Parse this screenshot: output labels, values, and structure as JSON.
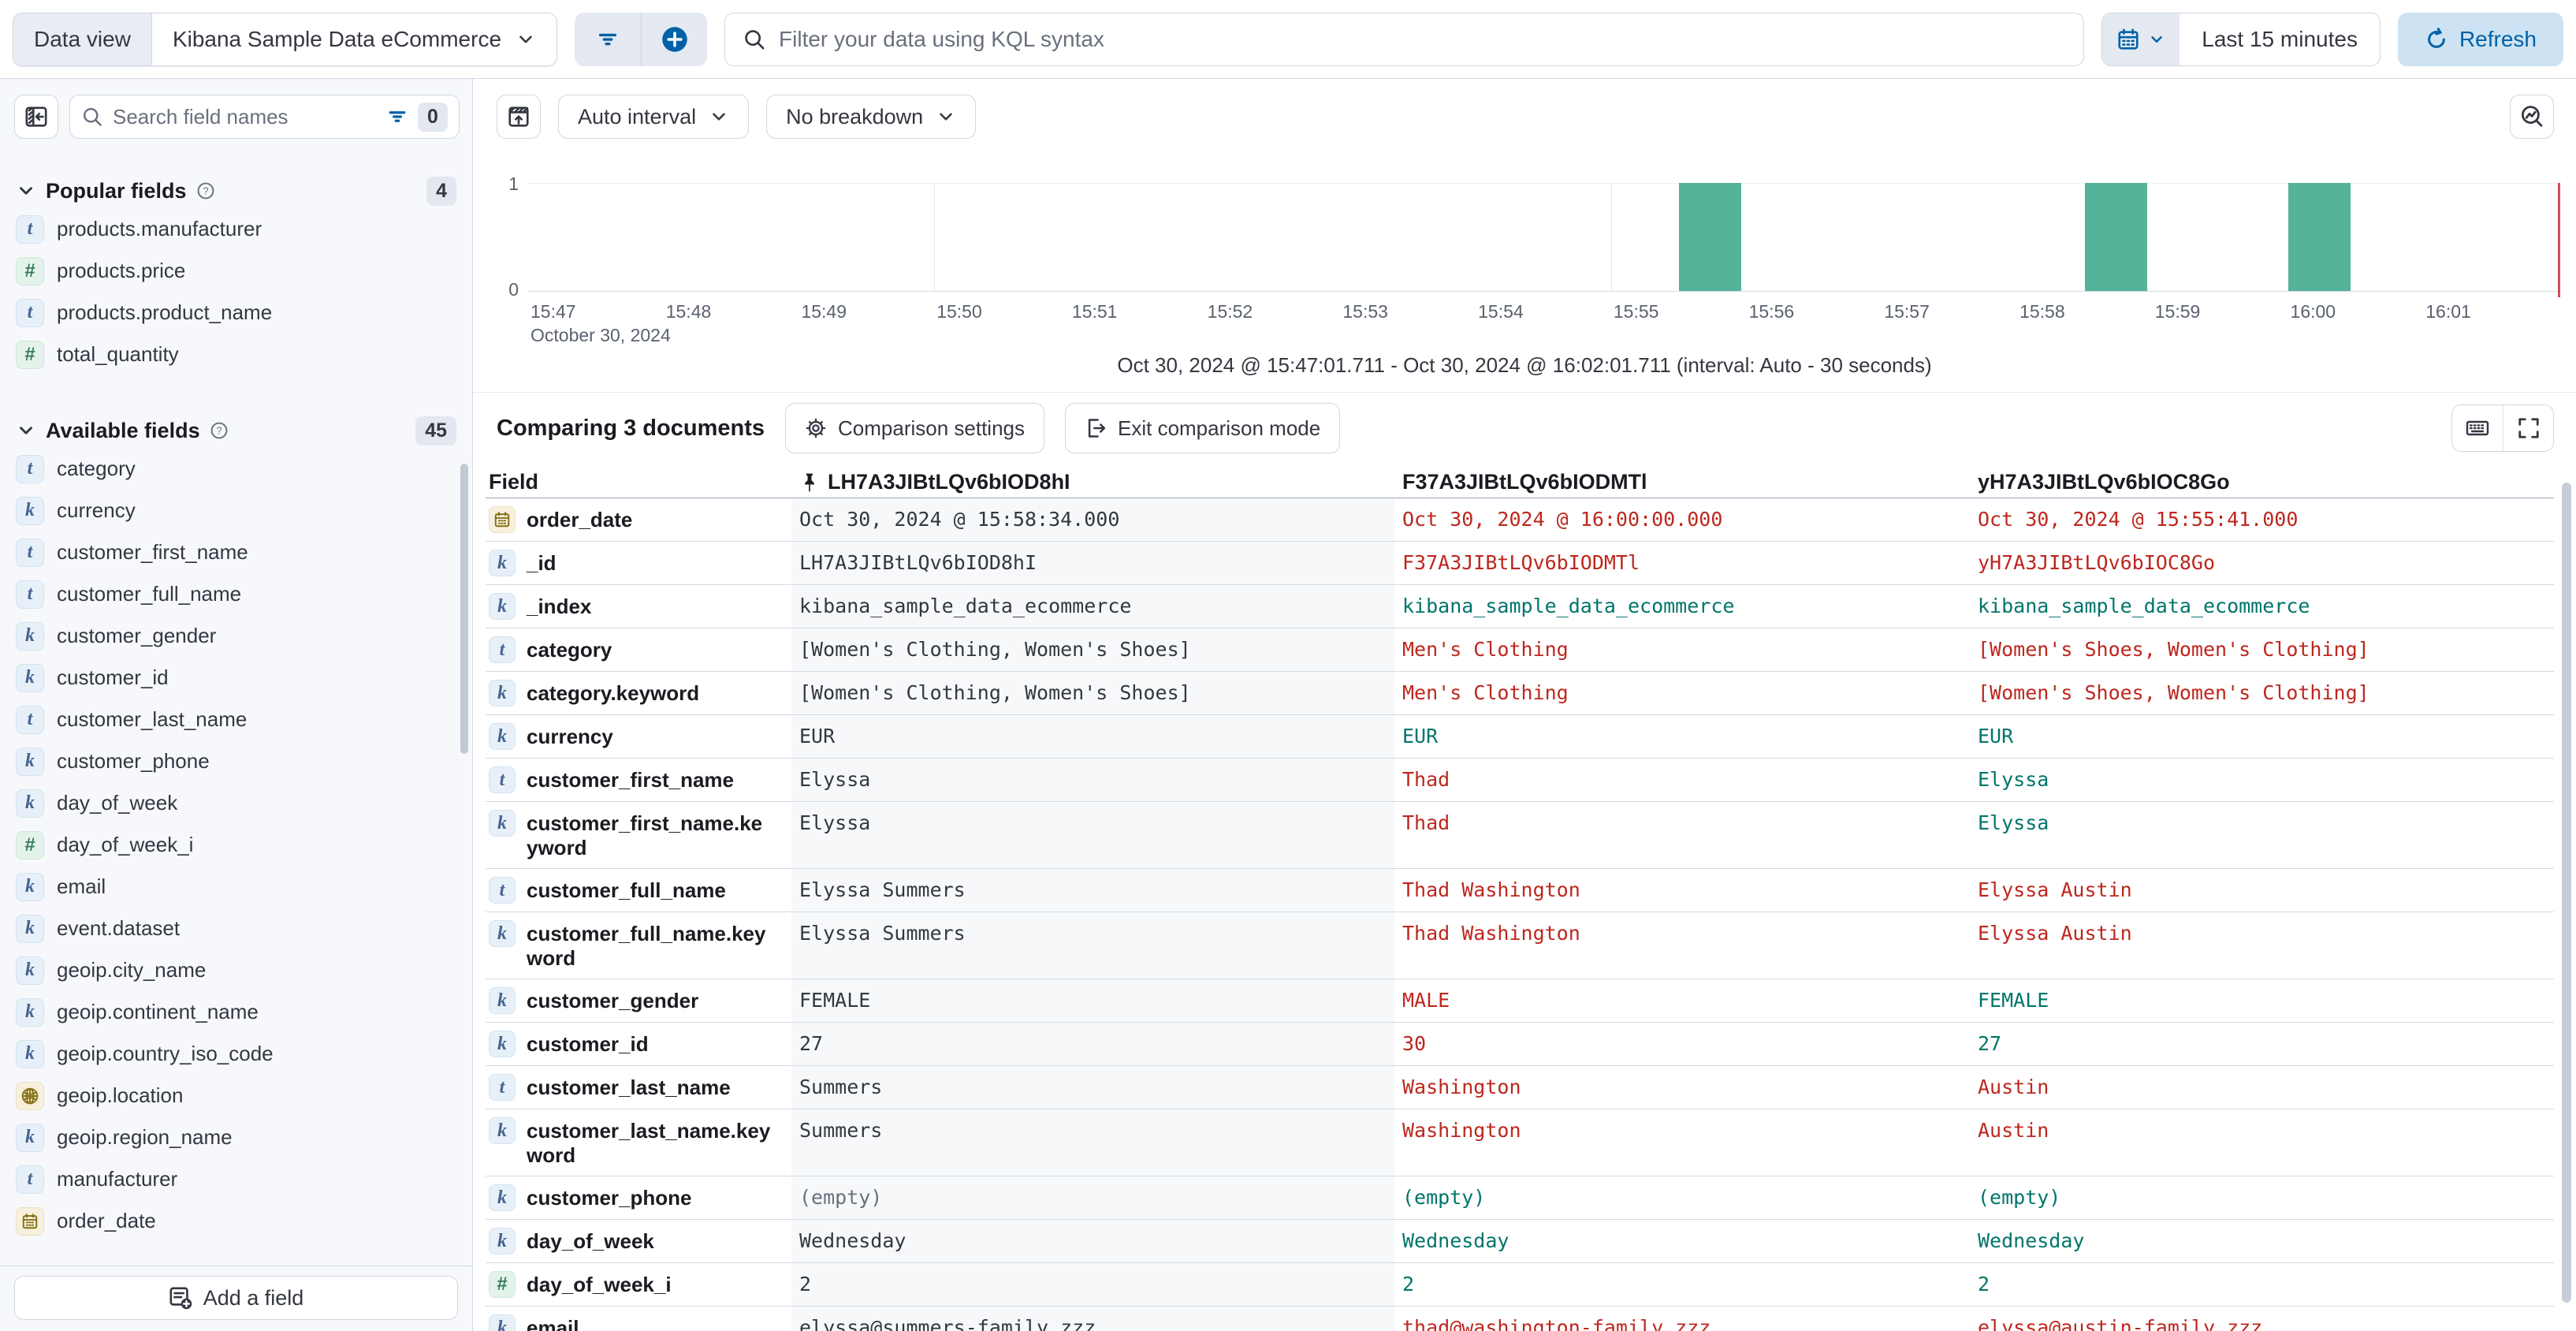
{
  "topbar": {
    "data_view_label": "Data view",
    "data_view_value": "Kibana Sample Data eCommerce",
    "kql_placeholder": "Filter your data using KQL syntax",
    "time_range": "Last 15 minutes",
    "refresh_label": "Refresh"
  },
  "sidebar": {
    "search_placeholder": "Search field names",
    "filter_count": "0",
    "popular": {
      "label": "Popular fields",
      "count": "4",
      "items": [
        {
          "type": "text",
          "name": "products.manufacturer"
        },
        {
          "type": "number",
          "name": "products.price"
        },
        {
          "type": "text",
          "name": "products.product_name"
        },
        {
          "type": "number",
          "name": "total_quantity"
        }
      ]
    },
    "available": {
      "label": "Available fields",
      "count": "45",
      "items": [
        {
          "type": "text",
          "name": "category"
        },
        {
          "type": "keyword",
          "name": "currency"
        },
        {
          "type": "text",
          "name": "customer_first_name"
        },
        {
          "type": "text",
          "name": "customer_full_name"
        },
        {
          "type": "keyword",
          "name": "customer_gender"
        },
        {
          "type": "keyword",
          "name": "customer_id"
        },
        {
          "type": "text",
          "name": "customer_last_name"
        },
        {
          "type": "keyword",
          "name": "customer_phone"
        },
        {
          "type": "keyword",
          "name": "day_of_week"
        },
        {
          "type": "number",
          "name": "day_of_week_i"
        },
        {
          "type": "keyword",
          "name": "email"
        },
        {
          "type": "keyword",
          "name": "event.dataset"
        },
        {
          "type": "keyword",
          "name": "geoip.city_name"
        },
        {
          "type": "keyword",
          "name": "geoip.continent_name"
        },
        {
          "type": "keyword",
          "name": "geoip.country_iso_code"
        },
        {
          "type": "geo_point",
          "name": "geoip.location"
        },
        {
          "type": "keyword",
          "name": "geoip.region_name"
        },
        {
          "type": "text",
          "name": "manufacturer"
        },
        {
          "type": "date",
          "name": "order_date"
        }
      ]
    },
    "add_field_label": "Add a field"
  },
  "histogram": {
    "interval_label": "Auto interval",
    "breakdown_label": "No breakdown",
    "y_max": "1",
    "y_min": "0",
    "date_label": "October 30, 2024",
    "caption": "Oct 30, 2024 @ 15:47:01.711 - Oct 30, 2024 @ 16:02:01.711 (interval: Auto - 30 seconds)"
  },
  "chart_data": {
    "type": "bar",
    "x_start": "15:47:00",
    "x_end": "16:02:00",
    "ticks": [
      "15:47",
      "15:48",
      "15:49",
      "15:50",
      "15:51",
      "15:52",
      "15:53",
      "15:54",
      "15:55",
      "15:56",
      "15:57",
      "15:58",
      "15:59",
      "16:00",
      "16:01"
    ],
    "gridlines": [
      "15:50",
      "15:55",
      "16:00"
    ],
    "bars": [
      {
        "time": "15:55:30",
        "count": 1
      },
      {
        "time": "15:58:30",
        "count": 1
      },
      {
        "time": "16:00:00",
        "count": 1
      }
    ],
    "ylim": [
      0,
      1
    ],
    "bar_color": "#54b399",
    "interval_seconds": 30
  },
  "comparison": {
    "title": "Comparing 3 documents",
    "settings_label": "Comparison settings",
    "exit_label": "Exit comparison mode"
  },
  "table": {
    "field_header": "Field",
    "doc_headers": [
      "LH7A3JIBtLQv6bIOD8hI",
      "F37A3JIBtLQv6bIODMTl",
      "yH7A3JIBtLQv6bIOC8Go"
    ],
    "rows": [
      {
        "type": "date",
        "field": "order_date",
        "cells": [
          {
            "t": "Oct 30, 2024 @ 15:58:34.000",
            "s": "plain"
          },
          {
            "t": "Oct 30, 2024 @ 16:00:00.000",
            "s": "diff"
          },
          {
            "t": "Oct 30, 2024 @ 15:55:41.000",
            "s": "diff"
          }
        ]
      },
      {
        "type": "keyword",
        "field": "_id",
        "cells": [
          {
            "t": "LH7A3JIBtLQv6bIOD8hI",
            "s": "plain"
          },
          {
            "t": "F37A3JIBtLQv6bIODMTl",
            "s": "diff"
          },
          {
            "t": "yH7A3JIBtLQv6bIOC8Go",
            "s": "diff"
          }
        ]
      },
      {
        "type": "keyword",
        "field": "_index",
        "cells": [
          {
            "t": "kibana_sample_data_ecommerce",
            "s": "plain"
          },
          {
            "t": "kibana_sample_data_ecommerce",
            "s": "match"
          },
          {
            "t": "kibana_sample_data_ecommerce",
            "s": "match"
          }
        ]
      },
      {
        "type": "text",
        "field": "category",
        "cells": [
          {
            "t": "[Women's Clothing, Women's Shoes]",
            "s": "plain"
          },
          {
            "t": "Men's Clothing",
            "s": "diff"
          },
          {
            "t": "[Women's Shoes, Women's Clothing]",
            "s": "diff"
          }
        ]
      },
      {
        "type": "keyword",
        "field": "category.keyword",
        "cells": [
          {
            "t": "[Women's Clothing, Women's Shoes]",
            "s": "plain"
          },
          {
            "t": "Men's Clothing",
            "s": "diff"
          },
          {
            "t": "[Women's Shoes, Women's Clothing]",
            "s": "diff"
          }
        ]
      },
      {
        "type": "keyword",
        "field": "currency",
        "cells": [
          {
            "t": "EUR",
            "s": "plain"
          },
          {
            "t": "EUR",
            "s": "match"
          },
          {
            "t": "EUR",
            "s": "match"
          }
        ]
      },
      {
        "type": "text",
        "field": "customer_first_name",
        "cells": [
          {
            "t": "Elyssa",
            "s": "plain"
          },
          {
            "t": "Thad",
            "s": "diff"
          },
          {
            "t": "Elyssa",
            "s": "match"
          }
        ]
      },
      {
        "type": "keyword",
        "field": "customer_first_name.keyword",
        "cells": [
          {
            "t": "Elyssa",
            "s": "plain"
          },
          {
            "t": "Thad",
            "s": "diff"
          },
          {
            "t": "Elyssa",
            "s": "match"
          }
        ]
      },
      {
        "type": "text",
        "field": "customer_full_name",
        "cells": [
          {
            "t": "Elyssa Summers",
            "s": "plain"
          },
          {
            "t": "Thad Washington",
            "s": "diff"
          },
          {
            "t": "Elyssa Austin",
            "s": "diff"
          }
        ]
      },
      {
        "type": "keyword",
        "field": "customer_full_name.keyword",
        "cells": [
          {
            "t": "Elyssa Summers",
            "s": "plain"
          },
          {
            "t": "Thad Washington",
            "s": "diff"
          },
          {
            "t": "Elyssa Austin",
            "s": "diff"
          }
        ]
      },
      {
        "type": "keyword",
        "field": "customer_gender",
        "cells": [
          {
            "t": "FEMALE",
            "s": "plain"
          },
          {
            "t": "MALE",
            "s": "diff"
          },
          {
            "t": "FEMALE",
            "s": "match"
          }
        ]
      },
      {
        "type": "keyword",
        "field": "customer_id",
        "cells": [
          {
            "t": "27",
            "s": "plain"
          },
          {
            "t": "30",
            "s": "diff"
          },
          {
            "t": "27",
            "s": "match"
          }
        ]
      },
      {
        "type": "text",
        "field": "customer_last_name",
        "cells": [
          {
            "t": "Summers",
            "s": "plain"
          },
          {
            "t": "Washington",
            "s": "diff"
          },
          {
            "t": "Austin",
            "s": "diff"
          }
        ]
      },
      {
        "type": "keyword",
        "field": "customer_last_name.keyword",
        "cells": [
          {
            "t": "Summers",
            "s": "plain"
          },
          {
            "t": "Washington",
            "s": "diff"
          },
          {
            "t": "Austin",
            "s": "diff"
          }
        ]
      },
      {
        "type": "keyword",
        "field": "customer_phone",
        "cells": [
          {
            "t": "(empty)",
            "s": "muted"
          },
          {
            "t": "(empty)",
            "s": "match"
          },
          {
            "t": "(empty)",
            "s": "match"
          }
        ]
      },
      {
        "type": "keyword",
        "field": "day_of_week",
        "cells": [
          {
            "t": "Wednesday",
            "s": "plain"
          },
          {
            "t": "Wednesday",
            "s": "match"
          },
          {
            "t": "Wednesday",
            "s": "match"
          }
        ]
      },
      {
        "type": "number",
        "field": "day_of_week_i",
        "cells": [
          {
            "t": "2",
            "s": "plain"
          },
          {
            "t": "2",
            "s": "match"
          },
          {
            "t": "2",
            "s": "match"
          }
        ]
      },
      {
        "type": "keyword",
        "field": "email",
        "cells": [
          {
            "t": "elyssa@summers-family.zzz",
            "s": "plain"
          },
          {
            "t": "thad@washington-family.zzz",
            "s": "diff"
          },
          {
            "t": "elyssa@austin-family.zzz",
            "s": "diff"
          }
        ]
      }
    ]
  },
  "colors": {
    "diff": "#bd271e",
    "match": "#00756b",
    "accent": "#0061a6",
    "bar": "#54b399"
  }
}
